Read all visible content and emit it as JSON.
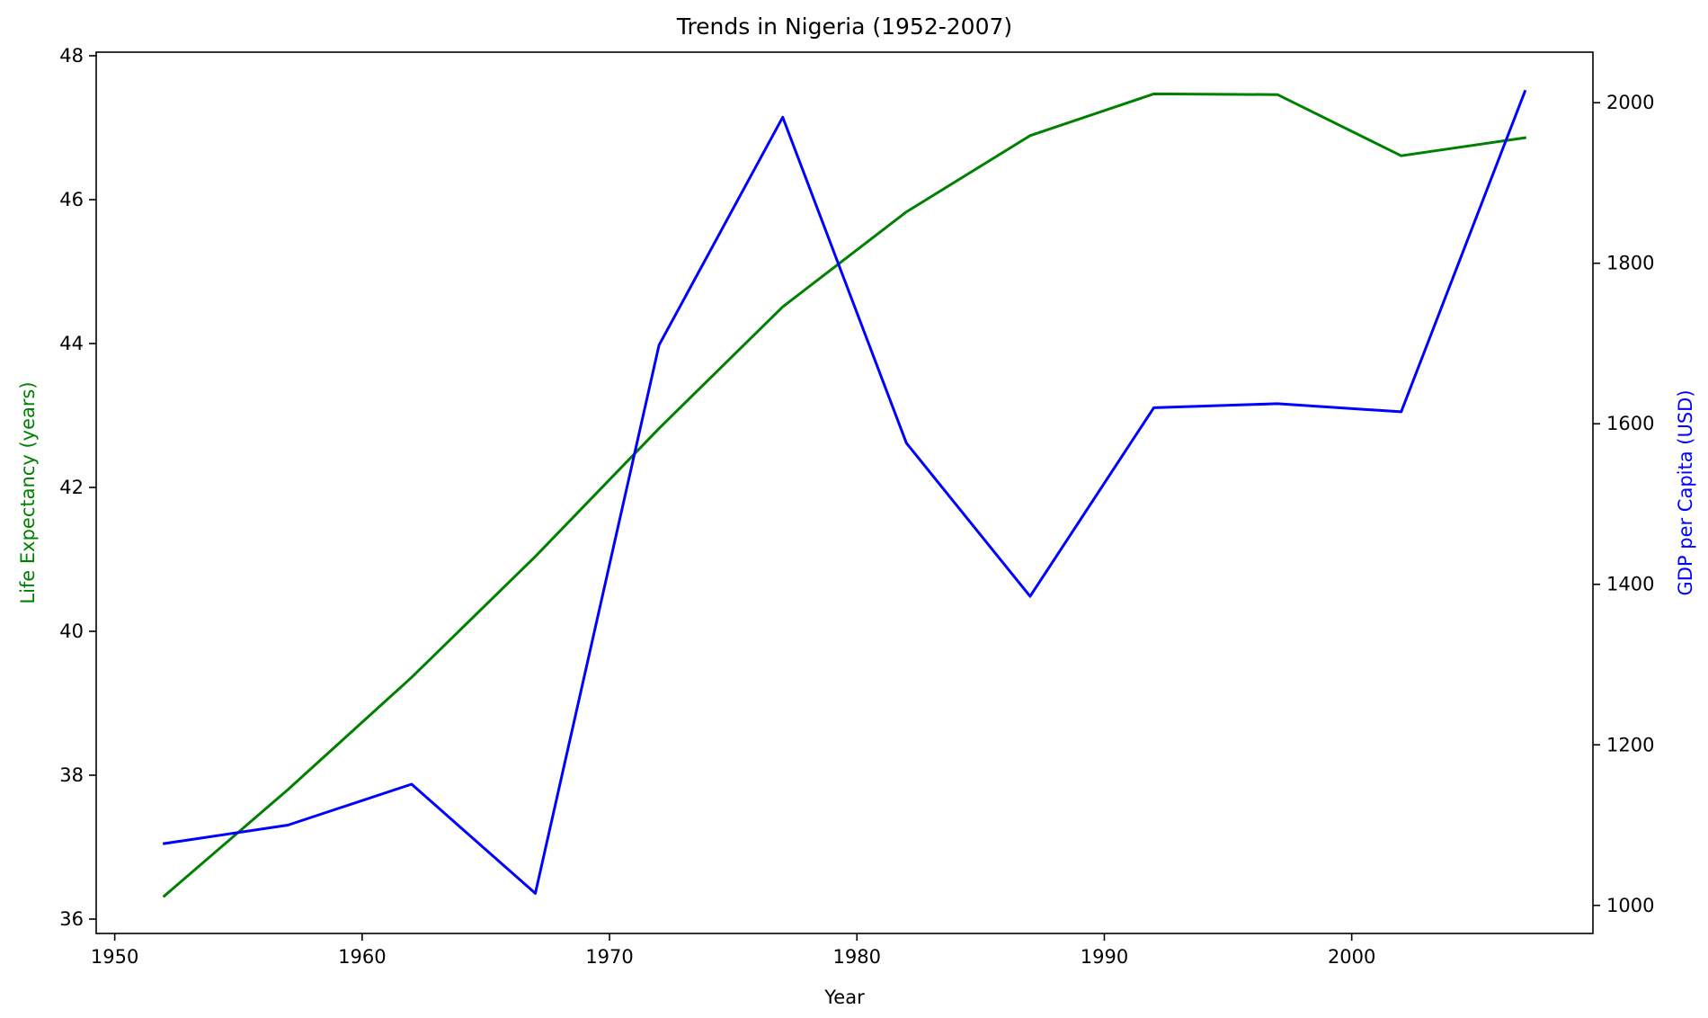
{
  "chart_data": {
    "type": "line",
    "title": "Trends in Nigeria (1952-2007)",
    "xlabel": "Year",
    "ylabel_left": "Life Expectancy (years)",
    "ylabel_right": "GDP per Capita (USD)",
    "xlim": [
      1949.25,
      2009.75
    ],
    "ylim_left": [
      35.8,
      48.05
    ],
    "ylim_right": [
      965,
      2063
    ],
    "x_ticks": [
      1950,
      1960,
      1970,
      1980,
      1990,
      2000
    ],
    "y_ticks_left": [
      36,
      38,
      40,
      42,
      44,
      46,
      48
    ],
    "y_ticks_right": [
      1000,
      1200,
      1400,
      1600,
      1800,
      2000
    ],
    "grid": false,
    "x": [
      1952,
      1957,
      1962,
      1967,
      1972,
      1977,
      1982,
      1987,
      1992,
      1997,
      2002,
      2007
    ],
    "series": [
      {
        "axis": "left",
        "color": "#008000",
        "values": [
          36.32,
          37.8,
          39.36,
          41.04,
          42.82,
          44.51,
          45.83,
          46.89,
          47.47,
          47.46,
          46.61,
          46.86
        ]
      },
      {
        "axis": "right",
        "color": "#0000ff",
        "values": [
          1077,
          1100,
          1151,
          1015,
          1698,
          1982,
          1576,
          1385,
          1620,
          1625,
          1615,
          2014
        ]
      }
    ]
  }
}
